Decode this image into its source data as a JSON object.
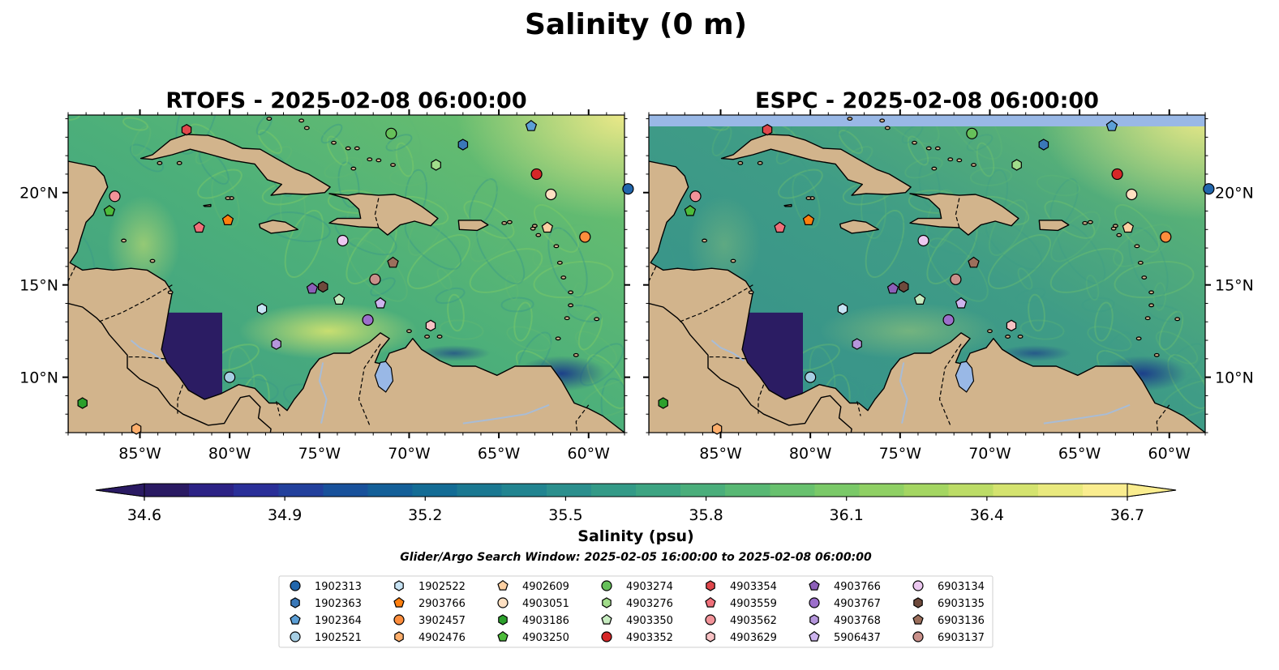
{
  "title": "Salinity (0 m)",
  "panels": [
    {
      "id": "rtofs",
      "title": "RTOFS - 2025-02-08 06:00:00",
      "variant": "rtofs"
    },
    {
      "id": "espc",
      "title": "ESPC - 2025-02-08 06:00:00",
      "variant": "espc"
    }
  ],
  "map_extent": {
    "lon": [
      -89,
      -58
    ],
    "lat": [
      7,
      24.2
    ]
  },
  "lon_ticks": [
    {
      "value": -85,
      "label": "85°W"
    },
    {
      "value": -80,
      "label": "80°W"
    },
    {
      "value": -75,
      "label": "75°W"
    },
    {
      "value": -70,
      "label": "70°W"
    },
    {
      "value": -65,
      "label": "65°W"
    },
    {
      "value": -60,
      "label": "60°W"
    }
  ],
  "lat_ticks": [
    {
      "value": 10,
      "label": "10°N"
    },
    {
      "value": 15,
      "label": "15°N"
    },
    {
      "value": 20,
      "label": "20°N"
    }
  ],
  "colorbar": {
    "label": "Salinity (psu)",
    "min": 34.6,
    "max": 36.7,
    "ticks": [
      "34.6",
      "34.9",
      "35.2",
      "35.5",
      "35.8",
      "36.1",
      "36.4",
      "36.7"
    ],
    "colors": [
      "#2a1a63",
      "#2c2285",
      "#2a2f98",
      "#22409c",
      "#18519b",
      "#135f98",
      "#136c95",
      "#1a7891",
      "#218490",
      "#2b8f8d",
      "#339a87",
      "#3da482",
      "#4aae7b",
      "#58b874",
      "#68c16e",
      "#7ac968",
      "#8fd064",
      "#a4d662",
      "#bcdc66",
      "#d4e36f",
      "#e9e97e",
      "#faed8f"
    ],
    "extend": "both"
  },
  "search_window": "Glider/Argo Search Window: 2025-02-05 16:00:00 to 2025-02-08 06:00:00",
  "colors": {
    "land": "#d2b48c",
    "deep_water": "#2b1c63",
    "ocean_mid": "#3f9e85",
    "ocean_fresh": "#6bbf6c",
    "ocean_salty": "#d9e478",
    "lake": "#99b8e6"
  },
  "floats": [
    {
      "id": "1902313",
      "marker": "circle",
      "color": "#2166ac",
      "lon": -57.8,
      "lat": 20.2
    },
    {
      "id": "1902363",
      "marker": "hexagon",
      "color": "#3a78b8",
      "lon": -67.0,
      "lat": 22.6
    },
    {
      "id": "1902364",
      "marker": "pentagon",
      "color": "#5c9fd6",
      "lon": -63.2,
      "lat": 23.6
    },
    {
      "id": "1902521",
      "marker": "circle",
      "color": "#a6cee3",
      "lon": -80.0,
      "lat": 10.0
    },
    {
      "id": "1902522",
      "marker": "hexagon",
      "color": "#c7e3f4",
      "lon": -78.2,
      "lat": 13.7
    },
    {
      "id": "2903766",
      "marker": "pentagon",
      "color": "#ff7f0e",
      "lon": -80.1,
      "lat": 18.5
    },
    {
      "id": "3902457",
      "marker": "circle",
      "color": "#fd8d3c",
      "lon": -60.2,
      "lat": 17.6
    },
    {
      "id": "4902476",
      "marker": "hexagon",
      "color": "#fdae6b",
      "lon": -85.2,
      "lat": 7.2
    },
    {
      "id": "4902609",
      "marker": "pentagon",
      "color": "#fdd0a2",
      "lon": -62.3,
      "lat": 18.1
    },
    {
      "id": "4903051",
      "marker": "circle",
      "color": "#ffe0c2",
      "lon": -62.1,
      "lat": 19.9
    },
    {
      "id": "4903186",
      "marker": "hexagon",
      "color": "#2ca02c",
      "lon": -88.2,
      "lat": 8.6
    },
    {
      "id": "4903250",
      "marker": "pentagon",
      "color": "#4dbb3a",
      "lon": -86.7,
      "lat": 19.0
    },
    {
      "id": "4903274",
      "marker": "circle",
      "color": "#66c05a",
      "lon": -71.0,
      "lat": 23.2
    },
    {
      "id": "4903276",
      "marker": "hexagon",
      "color": "#a1dc8a",
      "lon": -68.5,
      "lat": 21.5
    },
    {
      "id": "4903350",
      "marker": "pentagon",
      "color": "#c7ecc0",
      "lon": -73.9,
      "lat": 14.2
    },
    {
      "id": "4903352",
      "marker": "circle",
      "color": "#d62728",
      "lon": -62.9,
      "lat": 21.0
    },
    {
      "id": "4903354",
      "marker": "hexagon",
      "color": "#e0474c",
      "lon": -82.4,
      "lat": 23.4
    },
    {
      "id": "4903559",
      "marker": "pentagon",
      "color": "#f0707a",
      "lon": -81.7,
      "lat": 18.1
    },
    {
      "id": "4903562",
      "marker": "circle",
      "color": "#f29399",
      "lon": -86.4,
      "lat": 19.8
    },
    {
      "id": "4903629",
      "marker": "hexagon",
      "color": "#f8c2c4",
      "lon": -68.8,
      "lat": 12.8
    },
    {
      "id": "4903766",
      "marker": "pentagon",
      "color": "#8c5fb8",
      "lon": -75.4,
      "lat": 14.8
    },
    {
      "id": "4903767",
      "marker": "circle",
      "color": "#9c6fcb",
      "lon": -72.3,
      "lat": 13.1
    },
    {
      "id": "4903768",
      "marker": "hexagon",
      "color": "#b596dc",
      "lon": -77.4,
      "lat": 11.8
    },
    {
      "id": "5906437",
      "marker": "pentagon",
      "color": "#cdb4ee",
      "lon": -71.6,
      "lat": 14.0
    },
    {
      "id": "6903134",
      "marker": "circle",
      "color": "#ecc8f0",
      "lon": -73.7,
      "lat": 17.4
    },
    {
      "id": "6903135",
      "marker": "hexagon",
      "color": "#6e4a3c",
      "lon": -74.8,
      "lat": 14.9
    },
    {
      "id": "6903136",
      "marker": "pentagon",
      "color": "#9c6f5c",
      "lon": -70.9,
      "lat": 16.2
    },
    {
      "id": "6903137",
      "marker": "circle",
      "color": "#c9908a",
      "lon": -71.9,
      "lat": 15.3
    }
  ]
}
